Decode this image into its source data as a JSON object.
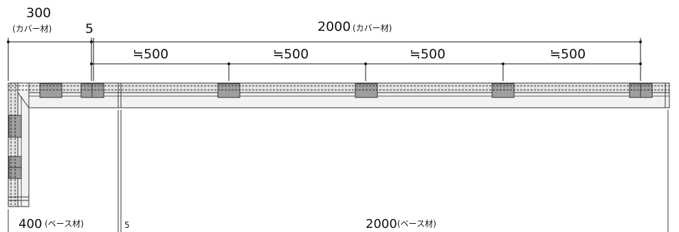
{
  "dimensions": {
    "cover_left": {
      "value": "300",
      "note": "(カバー材)"
    },
    "gap_top": "5",
    "cover_main": {
      "value": "2000",
      "note": "(カバー材)"
    },
    "spacings": [
      "≒500",
      "≒500",
      "≒500",
      "≒500"
    ],
    "base_left": {
      "value": "400",
      "note": "(ベース材)"
    },
    "gap_bottom": "5",
    "base_main": {
      "value": "2000",
      "note": "(ベース材)"
    }
  }
}
